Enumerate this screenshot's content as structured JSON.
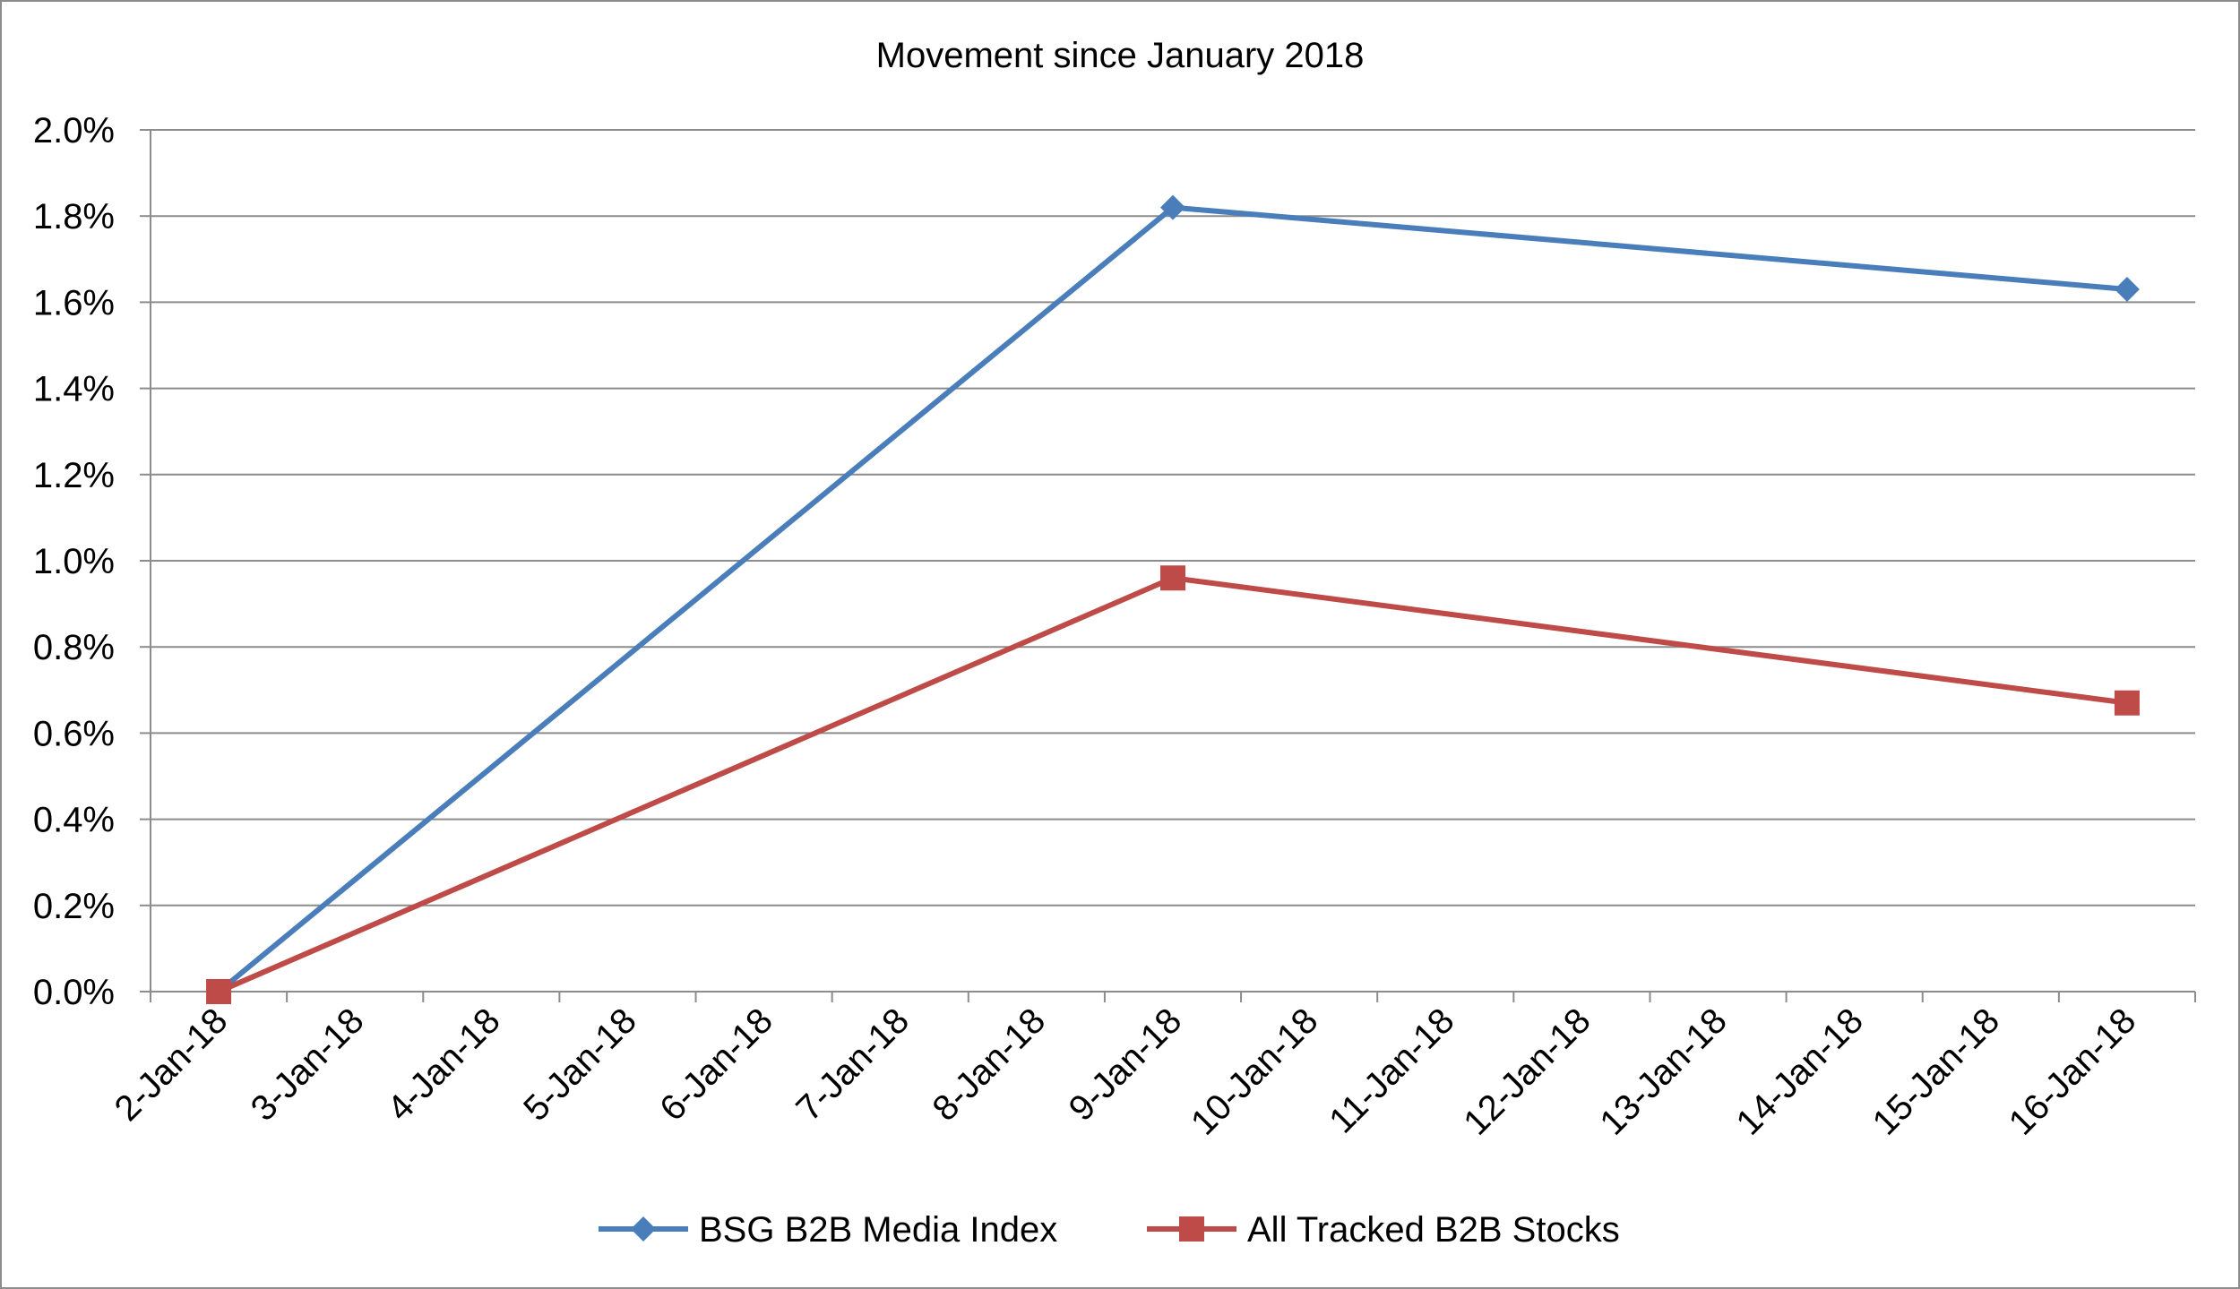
{
  "chart_data": {
    "type": "line",
    "title": "Movement since January 2018",
    "xlabel": "",
    "ylabel": "",
    "categories": [
      "2-Jan-18",
      "3-Jan-18",
      "4-Jan-18",
      "5-Jan-18",
      "6-Jan-18",
      "7-Jan-18",
      "8-Jan-18",
      "9-Jan-18",
      "10-Jan-18",
      "11-Jan-18",
      "12-Jan-18",
      "13-Jan-18",
      "14-Jan-18",
      "15-Jan-18",
      "16-Jan-18"
    ],
    "ylim": [
      0,
      0.02
    ],
    "y_ticks": [
      "0.0%",
      "0.2%",
      "0.4%",
      "0.6%",
      "0.8%",
      "1.0%",
      "1.2%",
      "1.4%",
      "1.6%",
      "1.8%",
      "2.0%"
    ],
    "y_tick_values": [
      0,
      0.002,
      0.004,
      0.006,
      0.008,
      0.01,
      0.012,
      0.014,
      0.016,
      0.018,
      0.02
    ],
    "grid": true,
    "legend_position": "bottom",
    "series": [
      {
        "name": "BSG B2B Media Index",
        "color": "#4a7ebb",
        "marker": "diamond",
        "points": [
          {
            "x": "2-Jan-18",
            "y": 0.0
          },
          {
            "x": "9-Jan-18",
            "y": 0.0182
          },
          {
            "x": "16-Jan-18",
            "y": 0.0163
          }
        ]
      },
      {
        "name": "All Tracked B2B Stocks",
        "color": "#be4b48",
        "marker": "square",
        "points": [
          {
            "x": "2-Jan-18",
            "y": 0.0
          },
          {
            "x": "9-Jan-18",
            "y": 0.0096
          },
          {
            "x": "16-Jan-18",
            "y": 0.0067
          }
        ]
      }
    ],
    "colors": {
      "gridline": "#8c8c8c",
      "axis": "#8c8c8c",
      "frame": "#8c8c8c"
    }
  }
}
